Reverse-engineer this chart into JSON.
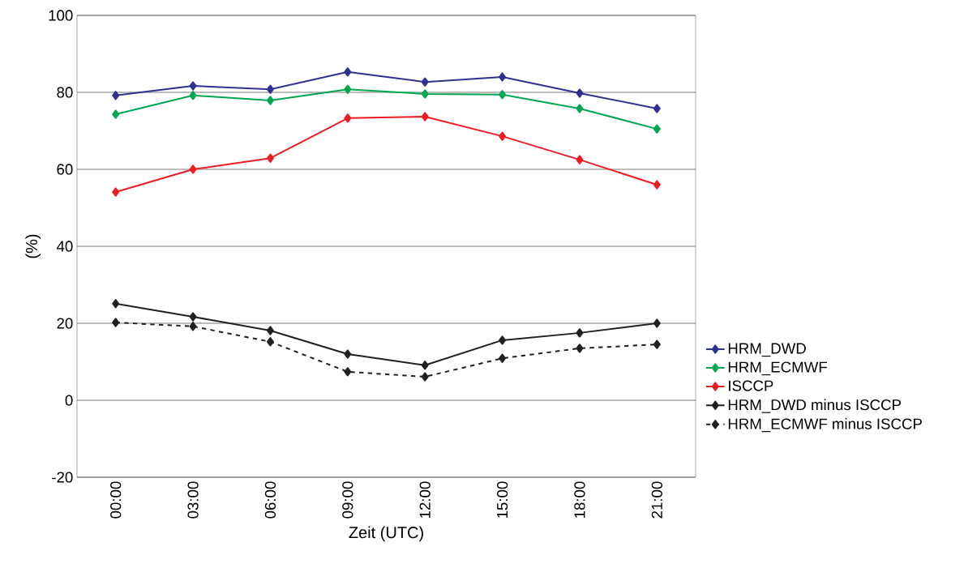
{
  "chart_data": {
    "type": "line",
    "xlabel": "Zeit (UTC)",
    "ylabel": "(%)",
    "categories": [
      "00:00",
      "03:00",
      "06:00",
      "09:00",
      "12:00",
      "15:00",
      "18:00",
      "21:00"
    ],
    "series": [
      {
        "name": "HRM_DWD",
        "color": "#2e3192",
        "line_style": "solid",
        "values": [
          79.2,
          81.7,
          80.8,
          85.3,
          82.7,
          84.0,
          79.8,
          75.8
        ]
      },
      {
        "name": "HRM_ECMWF",
        "color": "#00a651",
        "line_style": "solid",
        "values": [
          74.3,
          79.2,
          77.9,
          80.8,
          79.6,
          79.4,
          75.8,
          70.5
        ]
      },
      {
        "name": "ISCCP",
        "color": "#ed1c24",
        "line_style": "solid",
        "values": [
          54.1,
          60.0,
          62.9,
          73.3,
          73.7,
          68.6,
          62.5,
          56.0
        ]
      },
      {
        "name": "HRM_DWD minus ISCCP",
        "color": "#231f20",
        "line_style": "solid",
        "values": [
          25.1,
          21.7,
          18.1,
          12.0,
          9.1,
          15.6,
          17.5,
          20.0
        ]
      },
      {
        "name": "HRM_ECMWF minus ISCCP",
        "color": "#231f20",
        "line_style": "dashed",
        "values": [
          20.2,
          19.2,
          15.2,
          7.4,
          6.1,
          10.9,
          13.5,
          14.5
        ]
      }
    ],
    "ylim": [
      -20,
      100
    ],
    "yticks": [
      -20,
      0,
      20,
      40,
      60,
      80,
      100
    ],
    "grid": "y",
    "legend": "right",
    "marker": "diamond"
  }
}
